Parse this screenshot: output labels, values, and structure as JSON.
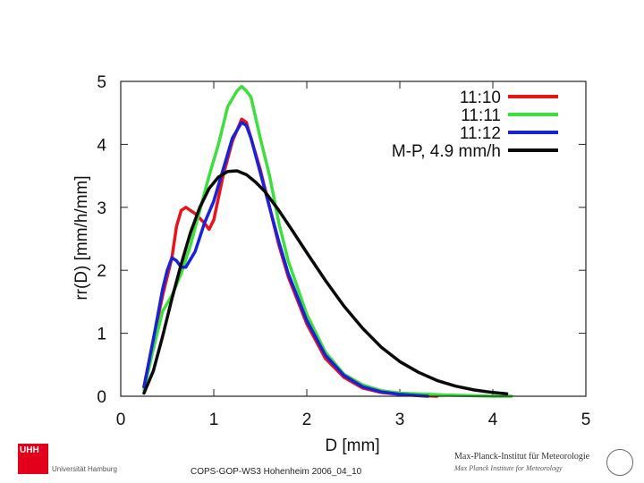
{
  "chart_data": {
    "type": "line",
    "xlabel": "D [mm]",
    "ylabel": "rr(D) [mm/h/mm]",
    "xlim": [
      0,
      5
    ],
    "ylim": [
      0,
      5
    ],
    "x_ticks": [
      "0",
      "1",
      "2",
      "3",
      "4",
      "5"
    ],
    "y_ticks": [
      "0",
      "1",
      "2",
      "3",
      "4",
      "5"
    ],
    "legend_position": "top-right",
    "series": [
      {
        "name": "11:10",
        "color": "#e8141c",
        "x": [
          0.25,
          0.35,
          0.45,
          0.55,
          0.6,
          0.65,
          0.7,
          0.8,
          0.9,
          0.95,
          1.0,
          1.1,
          1.2,
          1.3,
          1.35,
          1.4,
          1.5,
          1.6,
          1.7,
          1.8,
          2.0,
          2.2,
          2.4,
          2.6,
          2.8,
          3.0,
          3.2,
          3.4
        ],
        "values": [
          0.15,
          0.9,
          1.6,
          2.2,
          2.7,
          2.95,
          3.0,
          2.9,
          2.75,
          2.65,
          2.8,
          3.5,
          4.05,
          4.4,
          4.35,
          4.1,
          3.6,
          3.0,
          2.4,
          1.9,
          1.15,
          0.6,
          0.3,
          0.13,
          0.06,
          0.03,
          0.01,
          0.0
        ]
      },
      {
        "name": "11:11",
        "color": "#3ede3e",
        "x": [
          0.25,
          0.35,
          0.45,
          0.55,
          0.65,
          0.75,
          0.85,
          0.95,
          1.05,
          1.15,
          1.25,
          1.3,
          1.35,
          1.4,
          1.5,
          1.6,
          1.7,
          1.8,
          2.0,
          2.2,
          2.4,
          2.6,
          2.8,
          3.0,
          3.5,
          4.0,
          4.2
        ],
        "values": [
          0.1,
          0.75,
          1.35,
          1.6,
          1.95,
          2.4,
          2.95,
          3.5,
          4.0,
          4.6,
          4.85,
          4.92,
          4.85,
          4.75,
          4.1,
          3.5,
          2.75,
          2.15,
          1.3,
          0.7,
          0.35,
          0.18,
          0.09,
          0.05,
          0.02,
          0.0,
          0.0
        ]
      },
      {
        "name": "11:12",
        "color": "#1a22d8",
        "x": [
          0.25,
          0.35,
          0.45,
          0.5,
          0.55,
          0.6,
          0.65,
          0.7,
          0.8,
          0.9,
          1.0,
          1.1,
          1.2,
          1.3,
          1.35,
          1.4,
          1.5,
          1.6,
          1.7,
          1.8,
          2.0,
          2.2,
          2.4,
          2.6,
          2.8,
          3.0,
          3.3
        ],
        "values": [
          0.15,
          0.9,
          1.7,
          2.0,
          2.2,
          2.15,
          2.05,
          2.05,
          2.3,
          2.75,
          3.1,
          3.6,
          4.1,
          4.35,
          4.3,
          4.1,
          3.55,
          3.0,
          2.45,
          1.95,
          1.2,
          0.65,
          0.33,
          0.15,
          0.07,
          0.03,
          0.0
        ]
      },
      {
        "name": "M-P, 4.9 mm/h",
        "color": "#0a0a0a",
        "x": [
          0.25,
          0.35,
          0.45,
          0.55,
          0.65,
          0.75,
          0.85,
          0.95,
          1.05,
          1.15,
          1.25,
          1.35,
          1.45,
          1.55,
          1.7,
          1.85,
          2.0,
          2.2,
          2.4,
          2.6,
          2.8,
          3.0,
          3.2,
          3.4,
          3.6,
          3.8,
          4.0,
          4.15
        ],
        "values": [
          0.05,
          0.4,
          0.95,
          1.55,
          2.1,
          2.6,
          3.0,
          3.3,
          3.48,
          3.57,
          3.58,
          3.52,
          3.4,
          3.25,
          2.95,
          2.62,
          2.28,
          1.84,
          1.43,
          1.08,
          0.78,
          0.55,
          0.38,
          0.25,
          0.16,
          0.1,
          0.06,
          0.04
        ]
      }
    ]
  },
  "footer": {
    "caption": "COPS-GOP-WS3 Hohenheim 2006_04_10",
    "uhh_mark": "UHH",
    "uhh_name": "Universität Hamburg",
    "mpi_name": "Max-Planck-Institut für Meteorologie",
    "mpi_sub": "Max Planck Institute for Meteorology"
  }
}
